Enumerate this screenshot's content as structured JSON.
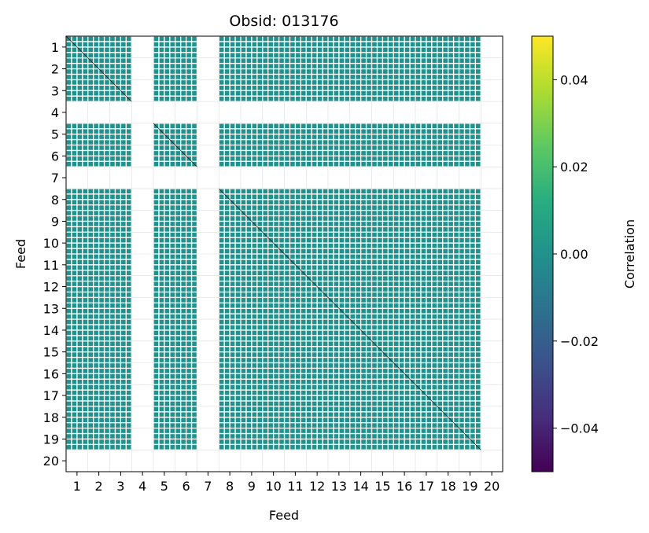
{
  "chart_data": {
    "type": "heatmap",
    "title": "Obsid: 013176",
    "xlabel": "Feed",
    "ylabel": "Feed",
    "x_ticks": [
      "1",
      "2",
      "3",
      "4",
      "5",
      "6",
      "7",
      "8",
      "9",
      "10",
      "11",
      "12",
      "13",
      "14",
      "15",
      "16",
      "17",
      "18",
      "19",
      "20"
    ],
    "y_ticks": [
      "1",
      "2",
      "3",
      "4",
      "5",
      "6",
      "7",
      "8",
      "9",
      "10",
      "11",
      "12",
      "13",
      "14",
      "15",
      "16",
      "17",
      "18",
      "19",
      "20"
    ],
    "feeds": 20,
    "masked_feeds": [
      4,
      7,
      20
    ],
    "cell_value": 0.0,
    "colorbar": {
      "label": "Correlation",
      "range": [
        -0.05,
        0.05
      ],
      "ticks": [
        -0.04,
        -0.02,
        0.0,
        0.02,
        0.04
      ],
      "tick_labels": [
        "−0.04",
        "−0.02",
        "0.00",
        "0.02",
        "0.04"
      ],
      "colormap": "viridis"
    },
    "colors": {
      "cell": "#21918c",
      "grid": "#dddddd",
      "diagonal": "#000000"
    }
  }
}
